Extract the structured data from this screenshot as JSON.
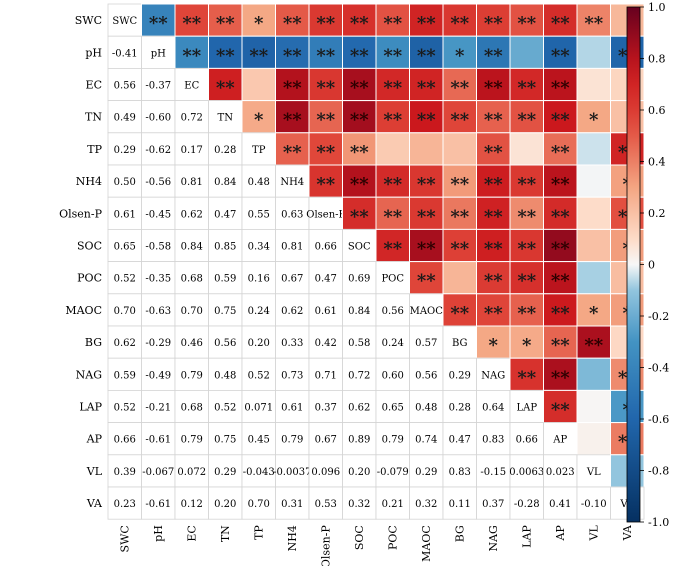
{
  "chart_data": {
    "type": "heatmap",
    "title": "",
    "variables": [
      "SWC",
      "pH",
      "EC",
      "TN",
      "TP",
      "NH4",
      "Olsen-P",
      "SOC",
      "POC",
      "MAOC",
      "BG",
      "NAG",
      "LAP",
      "AP",
      "VL",
      "VA"
    ],
    "lower_values": [
      [],
      [
        -0.41
      ],
      [
        0.56,
        -0.37
      ],
      [
        0.49,
        -0.6,
        0.72
      ],
      [
        0.29,
        -0.62,
        0.17,
        0.28
      ],
      [
        0.5,
        -0.56,
        0.81,
        0.84,
        0.48
      ],
      [
        0.61,
        -0.45,
        0.62,
        0.47,
        0.55,
        0.63
      ],
      [
        0.65,
        -0.58,
        0.84,
        0.85,
        0.34,
        0.81,
        0.66
      ],
      [
        0.52,
        -0.35,
        0.68,
        0.59,
        0.16,
        0.67,
        0.47,
        0.69
      ],
      [
        0.7,
        -0.63,
        0.7,
        0.75,
        0.24,
        0.62,
        0.61,
        0.84,
        0.56
      ],
      [
        0.62,
        -0.29,
        0.46,
        0.56,
        0.2,
        0.33,
        0.42,
        0.58,
        0.24,
        0.57
      ],
      [
        0.59,
        -0.49,
        0.79,
        0.48,
        0.52,
        0.73,
        0.71,
        0.72,
        0.6,
        0.56,
        0.29
      ],
      [
        0.52,
        -0.21,
        0.68,
        0.52,
        0.071,
        0.61,
        0.37,
        0.62,
        0.65,
        0.48,
        0.28,
        0.64
      ],
      [
        0.66,
        -0.61,
        0.79,
        0.75,
        0.45,
        0.79,
        0.67,
        0.89,
        0.79,
        0.74,
        0.47,
        0.83,
        0.66
      ],
      [
        0.39,
        -0.067,
        0.072,
        0.29,
        -0.043,
        -0.0037,
        0.096,
        0.2,
        -0.079,
        0.29,
        0.83,
        -0.15,
        0.0063,
        0.023
      ],
      [
        0.23,
        -0.61,
        0.12,
        0.2,
        0.7,
        0.31,
        0.53,
        0.32,
        0.21,
        0.32,
        0.11,
        0.37,
        -0.28,
        0.41,
        -0.1
      ]
    ],
    "lower_labels": [
      [],
      [
        "-0.41"
      ],
      [
        "0.56",
        "-0.37"
      ],
      [
        "0.49",
        "-0.60",
        "0.72"
      ],
      [
        "0.29",
        "-0.62",
        "0.17",
        "0.28"
      ],
      [
        "0.50",
        "-0.56",
        "0.81",
        "0.84",
        "0.48"
      ],
      [
        "0.61",
        "-0.45",
        "0.62",
        "0.47",
        "0.55",
        "0.63"
      ],
      [
        "0.65",
        "-0.58",
        "0.84",
        "0.85",
        "0.34",
        "0.81",
        "0.66"
      ],
      [
        "0.52",
        "-0.35",
        "0.68",
        "0.59",
        "0.16",
        "0.67",
        "0.47",
        "0.69"
      ],
      [
        "0.70",
        "-0.63",
        "0.70",
        "0.75",
        "0.24",
        "0.62",
        "0.61",
        "0.84",
        "0.56"
      ],
      [
        "0.62",
        "-0.29",
        "0.46",
        "0.56",
        "0.20",
        "0.33",
        "0.42",
        "0.58",
        "0.24",
        "0.57"
      ],
      [
        "0.59",
        "-0.49",
        "0.79",
        "0.48",
        "0.52",
        "0.73",
        "0.71",
        "0.72",
        "0.60",
        "0.56",
        "0.29"
      ],
      [
        "0.52",
        "-0.21",
        "0.68",
        "0.52",
        "0.071",
        "0.61",
        "0.37",
        "0.62",
        "0.65",
        "0.48",
        "0.28",
        "0.64"
      ],
      [
        "0.66",
        "-0.61",
        "0.79",
        "0.75",
        "0.45",
        "0.79",
        "0.67",
        "0.89",
        "0.79",
        "0.74",
        "0.47",
        "0.83",
        "0.66"
      ],
      [
        "0.39",
        "-0.067",
        "0.072",
        "0.29",
        "-0.043",
        "-0.0037",
        "0.096",
        "0.20",
        "-0.079",
        "0.29",
        "0.83",
        "-0.15",
        "0.0063",
        "0.023"
      ],
      [
        "0.23",
        "-0.61",
        "0.12",
        "0.20",
        "0.70",
        "0.31",
        "0.53",
        "0.32",
        "0.21",
        "0.32",
        "0.11",
        "0.37",
        "-0.28",
        "0.41",
        "-0.10"
      ]
    ],
    "significance_upper": [
      [
        "",
        "**",
        "**",
        "**",
        "*",
        "**",
        "**",
        "**",
        "**",
        "**",
        "**",
        "**",
        "**",
        "**",
        "**",
        ""
      ],
      [
        "",
        "",
        "**",
        "**",
        "**",
        "**",
        "**",
        "**",
        "**",
        "**",
        "*",
        "**",
        "",
        "**",
        "",
        "**"
      ],
      [
        "",
        "",
        "",
        "**",
        "",
        "**",
        "**",
        "**",
        "**",
        "**",
        "**",
        "**",
        "**",
        "**",
        "",
        ""
      ],
      [
        "",
        "",
        "",
        "",
        "*",
        "**",
        "**",
        "**",
        "**",
        "**",
        "**",
        "**",
        "**",
        "**",
        "*",
        ""
      ],
      [
        "",
        "",
        "",
        "",
        "",
        "**",
        "**",
        "**",
        "",
        "",
        "",
        "**",
        "",
        "**",
        "",
        "**"
      ],
      [
        "",
        "",
        "",
        "",
        "",
        "",
        "**",
        "**",
        "**",
        "**",
        "**",
        "**",
        "**",
        "**",
        "",
        "*"
      ],
      [
        "",
        "",
        "",
        "",
        "",
        "",
        "",
        "**",
        "**",
        "**",
        "**",
        "**",
        "**",
        "**",
        "",
        "**"
      ],
      [
        "",
        "",
        "",
        "",
        "",
        "",
        "",
        "",
        "**",
        "**",
        "**",
        "**",
        "**",
        "**",
        "",
        "*"
      ],
      [
        "",
        "",
        "",
        "",
        "",
        "",
        "",
        "",
        "",
        "**",
        "",
        "**",
        "**",
        "**",
        "",
        ""
      ],
      [
        "",
        "",
        "",
        "",
        "",
        "",
        "",
        "",
        "",
        "",
        "**",
        "**",
        "**",
        "**",
        "*",
        "*"
      ],
      [
        "",
        "",
        "",
        "",
        "",
        "",
        "",
        "",
        "",
        "",
        "",
        "*",
        "*",
        "**",
        "**",
        ""
      ],
      [
        "",
        "",
        "",
        "",
        "",
        "",
        "",
        "",
        "",
        "",
        "",
        "",
        "**",
        "**",
        "",
        "**"
      ],
      [
        "",
        "",
        "",
        "",
        "",
        "",
        "",
        "",
        "",
        "",
        "",
        "",
        "",
        "**",
        "",
        "*"
      ],
      [
        "",
        "",
        "",
        "",
        "",
        "",
        "",
        "",
        "",
        "",
        "",
        "",
        "",
        "",
        "",
        "**"
      ],
      [
        "",
        "",
        "",
        "",
        "",
        "",
        "",
        "",
        "",
        "",
        "",
        "",
        "",
        "",
        "",
        ""
      ],
      [
        "",
        "",
        "",
        "",
        "",
        "",
        "",
        "",
        "",
        "",
        "",
        "",
        "",
        "",
        "",
        ""
      ]
    ],
    "colorbar": {
      "range": [
        -1.0,
        1.0
      ],
      "ticks": [
        "1.0",
        "0.8",
        "0.6",
        "0.4",
        "0.2",
        "0",
        "-0.2",
        "-0.4",
        "-0.6",
        "-0.8",
        "-1.0"
      ]
    },
    "colors": {
      "negative_max": "#053061",
      "negative_mid": "#4393c3",
      "neutral": "#f7f7f7",
      "positive_mid": "#e0473a",
      "positive_max": "#67001f"
    }
  }
}
